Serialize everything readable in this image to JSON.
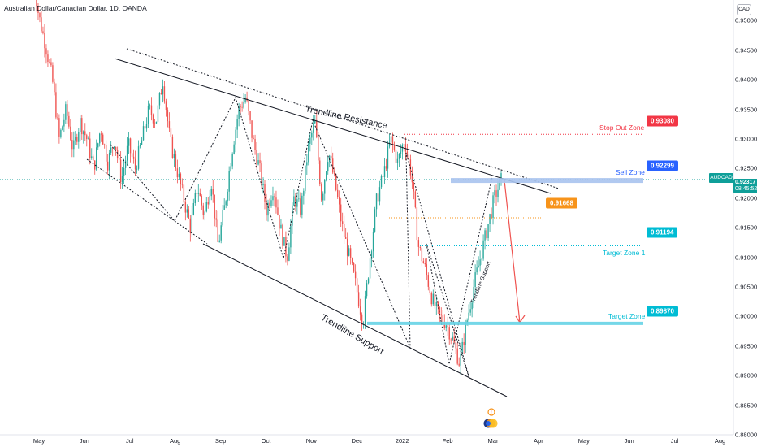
{
  "header": {
    "title": "Australian Dollar/Canadian Dollar, 1D, OANDA",
    "currency": "CAD"
  },
  "colors": {
    "up": "#26a69a",
    "down": "#ef5350",
    "stop": "#f23645",
    "sell": "#2962ff",
    "entry": "#f7931a",
    "target": "#00bcd4",
    "current": "#0f9f99"
  },
  "chart_data": {
    "type": "candlestick",
    "symbol": "AUDCAD",
    "ylim": [
      0.88,
      0.9535
    ],
    "y_ticks": [
      "0.95000",
      "0.94500",
      "0.94000",
      "0.93500",
      "0.93000",
      "0.92500",
      "0.92000",
      "0.91500",
      "0.91000",
      "0.90500",
      "0.90000",
      "0.89500",
      "0.89000",
      "0.88500",
      "0.88000"
    ],
    "x_ticks": [
      "May",
      "Jun",
      "Jul",
      "Aug",
      "Sep",
      "Oct",
      "Nov",
      "Dec",
      "2022",
      "Feb",
      "Mar",
      "Apr",
      "May",
      "Jun",
      "Jul",
      "Aug"
    ],
    "close_path": [
      0.96,
      0.951,
      0.946,
      0.94,
      0.93,
      0.935,
      0.928,
      0.933,
      0.93,
      0.925,
      0.932,
      0.926,
      0.93,
      0.923,
      0.929,
      0.925,
      0.93,
      0.935,
      0.933,
      0.94,
      0.93,
      0.925,
      0.92,
      0.915,
      0.922,
      0.917,
      0.923,
      0.912,
      0.919,
      0.928,
      0.935,
      0.937,
      0.93,
      0.925,
      0.918,
      0.922,
      0.915,
      0.91,
      0.92,
      0.918,
      0.928,
      0.933,
      0.92,
      0.928,
      0.922,
      0.915,
      0.91,
      0.905,
      0.899,
      0.91,
      0.92,
      0.924,
      0.93,
      0.926,
      0.93,
      0.924,
      0.912,
      0.908,
      0.903,
      0.9,
      0.899,
      0.896,
      0.892,
      0.899,
      0.905,
      0.91,
      0.915,
      0.92,
      0.923
    ],
    "current_price": "0.92317",
    "countdown": "08:45:52",
    "ticker": "AUDCAD",
    "annotations": {
      "trendline_resistance": "Trendline Resistance",
      "trendline_support": "Trendline Support",
      "trendline_support_small": "Trendline Support"
    },
    "levels": [
      {
        "key": "stop",
        "label": "Stop Out Zone",
        "price": "0.93080",
        "value": 0.9308
      },
      {
        "key": "sell",
        "label": "Sell Zone",
        "price": "0.92299",
        "value": 0.92299
      },
      {
        "key": "entry",
        "label": "",
        "price": "0.91668",
        "value": 0.91668
      },
      {
        "key": "target1",
        "label": "Target Zone 1",
        "price": "0.91194",
        "value": 0.91194
      },
      {
        "key": "target",
        "label": "Target Zone",
        "price": "0.89870",
        "value": 0.8987
      }
    ],
    "projection": {
      "from": 0.92299,
      "to": 0.8987
    }
  }
}
